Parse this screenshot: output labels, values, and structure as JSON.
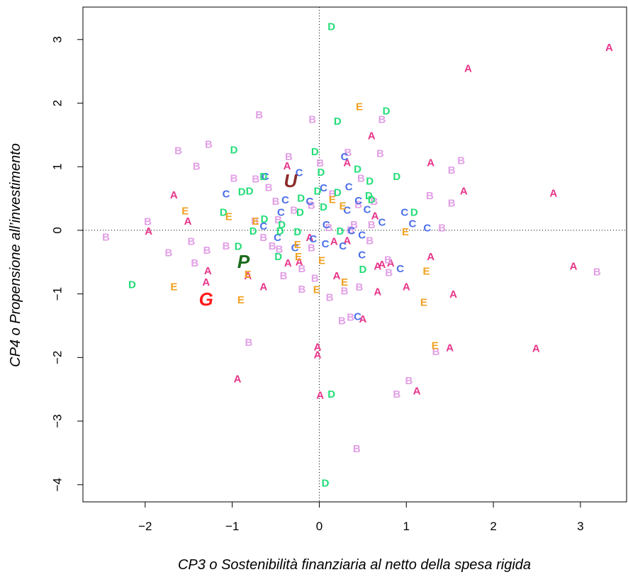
{
  "chart_data": {
    "type": "scatter",
    "xlabel": "CP3 o Sostenibilità finanziaria al netto della spesa rigida",
    "ylabel": "CP4 o Propensione all’investimento",
    "xlim": [
      -2.715,
      3.53
    ],
    "ylim": [
      -4.27,
      3.51
    ],
    "xticks": [
      {
        "value": -2,
        "label": "−2"
      },
      {
        "value": -1,
        "label": "−1"
      },
      0,
      1,
      2,
      3
    ],
    "yticks": [
      {
        "value": -4,
        "label": "−4"
      },
      {
        "value": -3,
        "label": "−3"
      },
      {
        "value": -2,
        "label": "−2"
      },
      {
        "value": -1,
        "label": "−1"
      },
      0,
      1,
      2,
      3
    ],
    "reference_x": 0,
    "reference_y": 0,
    "series": [
      {
        "name": "A",
        "color": "#e8358a",
        "marker_size": 15,
        "italic": false,
        "x": [
          3.33,
          1.71,
          0.6,
          0.32,
          1.28,
          -0.37,
          1.66,
          2.69,
          -1.67,
          -1.51,
          -1.96,
          0.64,
          -0.11,
          0.17,
          0.32,
          -0.23,
          -0.36,
          0.67,
          0.72,
          0.82,
          -1.28,
          1.28,
          -0.82,
          -1.3,
          -0.64,
          0.2,
          0.67,
          1.0,
          1.54,
          2.92,
          0.5,
          1.5,
          2.49,
          -0.02,
          -0.02,
          -0.94,
          0.01,
          1.12
        ],
        "y": [
          2.87,
          2.54,
          1.48,
          1.06,
          1.06,
          1.01,
          0.61,
          0.58,
          0.55,
          0.14,
          -0.02,
          0.22,
          -0.12,
          -0.18,
          -0.17,
          -0.5,
          -0.52,
          -0.57,
          -0.54,
          -0.52,
          -0.64,
          -0.42,
          -0.72,
          -0.82,
          -0.89,
          -0.72,
          -0.97,
          -0.89,
          -1.01,
          -0.57,
          -1.4,
          -1.85,
          -1.86,
          -1.84,
          -1.96,
          -2.34,
          -2.6,
          -2.53
        ]
      },
      {
        "name": "B",
        "color": "#e2a0e6",
        "marker_size": 15,
        "italic": false,
        "x": [
          -0.69,
          -0.08,
          0.72,
          -1.62,
          -1.27,
          -1.41,
          -0.35,
          0.33,
          0.7,
          1.63,
          1.52,
          -0.98,
          -0.73,
          0.01,
          0.48,
          1.27,
          1.52,
          -1.97,
          -2.45,
          -1.73,
          -1.47,
          -1.29,
          -1.43,
          -1.07,
          -0.58,
          -0.5,
          -0.47,
          -0.29,
          -0.64,
          -0.54,
          -0.46,
          -0.09,
          -0.41,
          -0.2,
          -0.2,
          -0.05,
          0.11,
          0.4,
          0.36,
          0.6,
          0.45,
          0.63,
          0.58,
          0.79,
          0.8,
          0.46,
          0.29,
          0.12,
          0.36,
          0.26,
          -0.81,
          1.03,
          0.89,
          1.34,
          0.43,
          3.19,
          1.41,
          -0.74,
          0.15,
          -0.09
        ],
        "y": [
          1.81,
          1.74,
          1.74,
          1.25,
          1.35,
          1.0,
          1.15,
          1.22,
          1.2,
          1.09,
          0.94,
          0.81,
          0.8,
          1.05,
          0.81,
          0.54,
          0.42,
          0.13,
          -0.11,
          -0.36,
          -0.18,
          -0.32,
          -0.52,
          -0.25,
          0.67,
          0.45,
          0.16,
          0.31,
          -0.12,
          -0.25,
          -0.3,
          -0.28,
          -0.72,
          -0.61,
          -0.93,
          -0.76,
          0.04,
          0.08,
          0.0,
          0.08,
          0.4,
          0.45,
          -0.17,
          -0.47,
          -0.67,
          -0.9,
          -0.96,
          -1.06,
          -1.37,
          -1.43,
          -1.77,
          -2.37,
          -2.58,
          -1.91,
          -3.44,
          -0.66,
          0.03,
          0.14,
          0.57,
          0.39
        ]
      },
      {
        "name": "C",
        "color": "#4a6ee8",
        "marker_size": 15,
        "italic": false,
        "x": [
          0.29,
          -0.23,
          -0.62,
          -1.07,
          0.34,
          0.05,
          -0.11,
          -0.39,
          0.45,
          0.55,
          -0.44,
          0.32,
          0.72,
          -0.64,
          0.08,
          0.37,
          0.49,
          0.98,
          1.07,
          1.24,
          -0.07,
          0.07,
          0.27,
          0.49,
          0.93,
          0.44,
          -0.48,
          -0.28
        ],
        "y": [
          1.15,
          0.9,
          0.84,
          0.57,
          0.68,
          0.66,
          0.45,
          0.47,
          0.46,
          0.32,
          0.28,
          0.31,
          0.12,
          0.06,
          0.08,
          -0.01,
          -0.08,
          0.28,
          0.1,
          0.03,
          -0.14,
          -0.22,
          -0.25,
          -0.39,
          -0.61,
          -1.36,
          -0.12,
          -0.28
        ]
      },
      {
        "name": "D",
        "color": "#22dd77",
        "marker_size": 15,
        "italic": false,
        "x": [
          0.14,
          0.77,
          0.21,
          -0.98,
          -0.05,
          0.44,
          0.02,
          0.58,
          0.89,
          -0.64,
          -0.89,
          -0.8,
          -0.21,
          -0.02,
          0.21,
          0.57,
          0.6,
          -0.22,
          0.05,
          -1.1,
          1.09,
          -0.63,
          -0.43,
          -0.45,
          -0.76,
          -0.25,
          0.24,
          -0.93,
          -0.47,
          0.5,
          -2.15,
          0.14,
          0.07
        ],
        "y": [
          3.2,
          1.87,
          1.71,
          1.26,
          1.23,
          0.96,
          0.91,
          0.77,
          0.84,
          0.84,
          0.6,
          0.61,
          0.5,
          0.61,
          0.59,
          0.54,
          0.48,
          0.28,
          0.36,
          0.28,
          0.28,
          0.17,
          0.08,
          -0.02,
          -0.02,
          -0.03,
          -0.02,
          -0.26,
          -0.42,
          -0.62,
          -0.86,
          -2.58,
          -3.98
        ]
      },
      {
        "name": "E",
        "color": "#f0a020",
        "marker_size": 15,
        "italic": false,
        "x": [
          0.46,
          -1.54,
          -1.04,
          -0.73,
          0.15,
          0.27,
          0.99,
          -0.25,
          -0.24,
          0.03,
          -0.82,
          1.23,
          -1.67,
          0.29,
          -0.03,
          -0.9,
          1.2,
          1.33
        ],
        "y": [
          1.94,
          0.3,
          0.21,
          0.14,
          0.48,
          0.38,
          -0.03,
          -0.23,
          -0.42,
          -0.48,
          -0.7,
          -0.65,
          -0.89,
          -0.82,
          -0.94,
          -1.1,
          -1.14,
          -1.82
        ]
      },
      {
        "name": "G",
        "color": "#ff1a1a",
        "marker_size": 26,
        "italic": true,
        "x": [
          -1.3
        ],
        "y": [
          -1.08
        ]
      },
      {
        "name": "P",
        "color": "#1a6b1a",
        "marker_size": 26,
        "italic": true,
        "x": [
          -0.87
        ],
        "y": [
          -0.49
        ]
      },
      {
        "name": "U",
        "color": "#8b2c2c",
        "marker_size": 26,
        "italic": true,
        "x": [
          -0.33
        ],
        "y": [
          0.78
        ]
      }
    ]
  }
}
